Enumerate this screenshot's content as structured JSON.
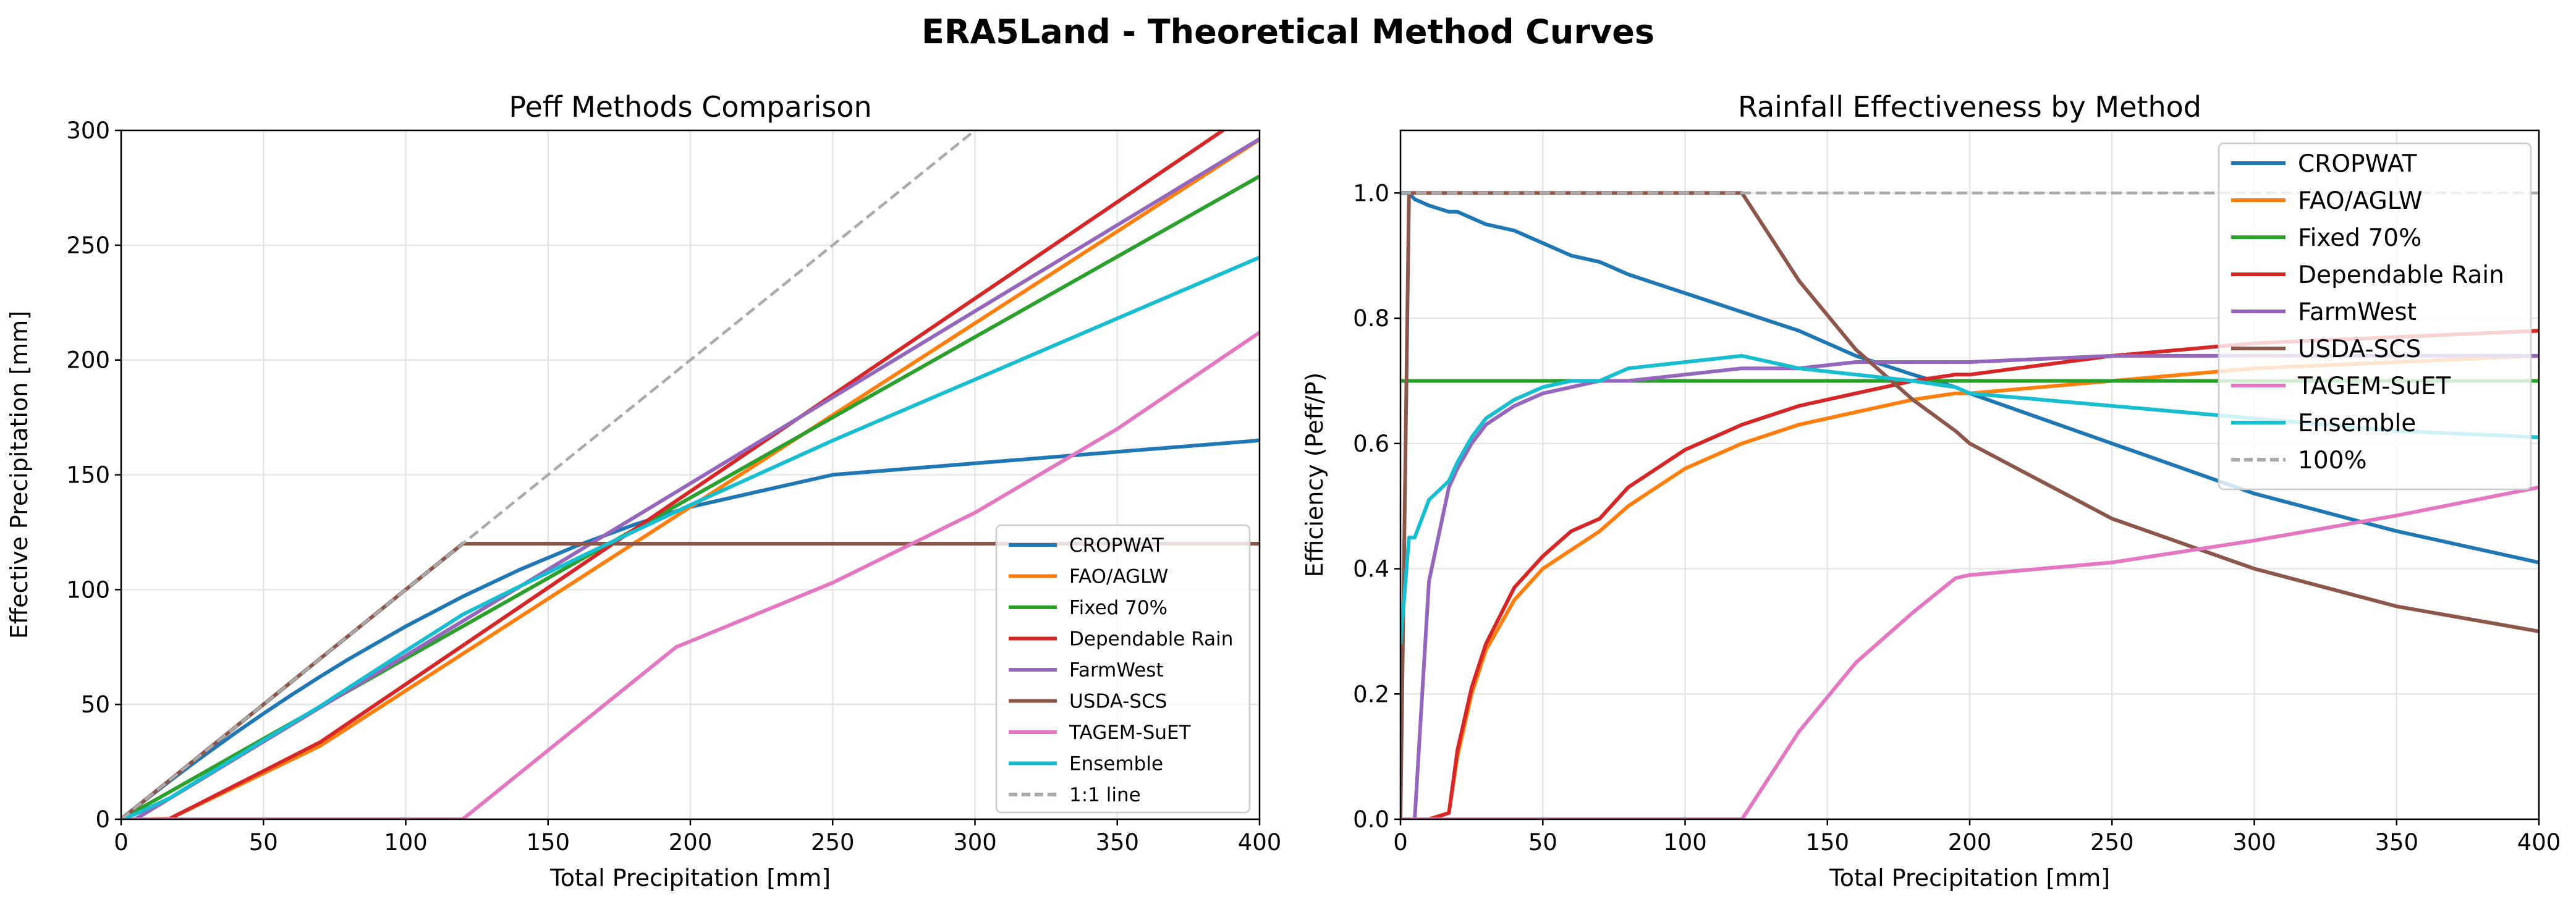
{
  "figure_title": "ERA5Land - Theoretical Method Curves",
  "colors": {
    "CROPWAT": "#1f77b4",
    "FAO/AGLW": "#ff7f0e",
    "Fixed 70%": "#2ca02c",
    "Dependable Rain": "#d62728",
    "FarmWest": "#9467bd",
    "USDA-SCS": "#8c564b",
    "TAGEM-SuET": "#e377c2",
    "Ensemble": "#17becf",
    "reference": "#aaaaaa"
  },
  "chart_data": [
    {
      "type": "line",
      "title": "Peff Methods Comparison",
      "xlabel": "Total Precipitation [mm]",
      "ylabel": "Effective Precipitation [mm]",
      "xlim": [
        0,
        400
      ],
      "ylim": [
        0,
        300
      ],
      "xticks": [
        "0",
        "50",
        "100",
        "150",
        "200",
        "250",
        "300",
        "350",
        "400"
      ],
      "yticks": [
        "0",
        "50",
        "100",
        "150",
        "200",
        "250",
        "300"
      ],
      "grid": true,
      "legend_position": "lower-right",
      "x": [
        0,
        3,
        5,
        10,
        17,
        20,
        25,
        30,
        40,
        50,
        60,
        70,
        80,
        100,
        120,
        140,
        160,
        180,
        195,
        200,
        250,
        300,
        350,
        400
      ],
      "series": [
        {
          "name": "CROPWAT",
          "values": [
            0,
            2.99,
            4.96,
            9.84,
            16.54,
            19.36,
            24,
            28.56,
            37.44,
            46,
            54.24,
            62.16,
            69.76,
            84,
            96.96,
            108.64,
            119.04,
            128.16,
            134.16,
            136,
            150,
            155,
            160,
            165
          ]
        },
        {
          "name": "FAO/AGLW",
          "values": [
            0,
            0,
            0,
            0,
            0.2,
            2,
            5,
            8,
            14,
            20,
            26,
            32,
            40,
            56,
            72,
            88,
            104,
            120,
            132,
            136,
            176,
            216,
            256,
            296
          ]
        },
        {
          "name": "Fixed 70%",
          "values": [
            0,
            2.1,
            3.5,
            7,
            11.9,
            14,
            17.5,
            21,
            28,
            35,
            42,
            49,
            56,
            70,
            84,
            98,
            112,
            126,
            136.5,
            140,
            175,
            210,
            245,
            280
          ]
        },
        {
          "name": "Dependable Rain",
          "values": [
            0,
            0,
            0,
            0,
            0.21,
            2.1,
            5.25,
            8.4,
            14.7,
            21,
            27.3,
            33.6,
            42,
            58.8,
            75.6,
            92.4,
            109.2,
            126,
            138.6,
            142.8,
            184.8,
            226.8,
            268.8,
            310.8
          ]
        },
        {
          "name": "FarmWest",
          "values": [
            0,
            0,
            0,
            3.75,
            9,
            11.25,
            15,
            18.75,
            26.25,
            33.75,
            41.25,
            48.75,
            56.25,
            71.25,
            86.25,
            101.25,
            116.25,
            131.25,
            142.5,
            146.25,
            183.75,
            221.25,
            258.75,
            296.25
          ]
        },
        {
          "name": "USDA-SCS",
          "values": [
            0,
            3,
            5,
            10,
            17,
            20,
            25,
            30,
            40,
            50,
            60,
            70,
            80,
            100,
            120,
            120,
            120,
            120,
            120,
            120,
            120,
            120,
            120,
            120
          ]
        },
        {
          "name": "TAGEM-SuET",
          "values": [
            0,
            0,
            0,
            0,
            0,
            0,
            0,
            0,
            0,
            0,
            0,
            0,
            0,
            0,
            0,
            20,
            40,
            60,
            75,
            77.5,
            103,
            133.5,
            170,
            212
          ]
        },
        {
          "name": "Ensemble",
          "values": [
            0,
            1.35,
            2.24,
            5.1,
            9.14,
            11.45,
            15.29,
            19.12,
            26.73,
            34.29,
            41.8,
            49.25,
            57.34,
            73.34,
            89.13,
            101.38,
            113.42,
            125.24,
            133.96,
            136.84,
            164.93,
            191.51,
            218.09,
            244.68
          ]
        }
      ],
      "reference": {
        "name": "1:1 line",
        "x": [
          0,
          300
        ],
        "values": [
          0,
          300
        ],
        "style": "dashed"
      }
    },
    {
      "type": "line",
      "title": "Rainfall Effectiveness by Method",
      "xlabel": "Total Precipitation [mm]",
      "ylabel": "Efficiency (Peff/P)",
      "xlim": [
        0,
        400
      ],
      "ylim": [
        0,
        1.1
      ],
      "xticks": [
        "0",
        "50",
        "100",
        "150",
        "200",
        "250",
        "300",
        "350",
        "400"
      ],
      "yticks": [
        "0.0",
        "0.2",
        "0.4",
        "0.6",
        "0.8",
        "1.0"
      ],
      "grid": true,
      "legend_position": "upper-right",
      "x": [
        0,
        3,
        5,
        10,
        17,
        20,
        25,
        30,
        40,
        50,
        60,
        70,
        80,
        100,
        120,
        140,
        160,
        180,
        195,
        200,
        250,
        300,
        350,
        400
      ],
      "series": [
        {
          "name": "CROPWAT",
          "values": [
            1.0,
            1.0,
            0.99,
            0.98,
            0.97,
            0.97,
            0.96,
            0.95,
            0.94,
            0.92,
            0.9,
            0.89,
            0.87,
            0.84,
            0.81,
            0.78,
            0.74,
            0.71,
            0.69,
            0.68,
            0.6,
            0.52,
            0.46,
            0.41
          ]
        },
        {
          "name": "FAO/AGLW",
          "values": [
            0,
            0,
            0,
            0,
            0.01,
            0.1,
            0.2,
            0.27,
            0.35,
            0.4,
            0.43,
            0.46,
            0.5,
            0.56,
            0.6,
            0.63,
            0.65,
            0.67,
            0.68,
            0.68,
            0.7,
            0.72,
            0.73,
            0.74
          ]
        },
        {
          "name": "Fixed 70%",
          "values": [
            0.7,
            0.7,
            0.7,
            0.7,
            0.7,
            0.7,
            0.7,
            0.7,
            0.7,
            0.7,
            0.7,
            0.7,
            0.7,
            0.7,
            0.7,
            0.7,
            0.7,
            0.7,
            0.7,
            0.7,
            0.7,
            0.7,
            0.7,
            0.7
          ]
        },
        {
          "name": "Dependable Rain",
          "values": [
            0,
            0,
            0,
            0,
            0.01,
            0.11,
            0.21,
            0.28,
            0.37,
            0.42,
            0.46,
            0.48,
            0.53,
            0.59,
            0.63,
            0.66,
            0.68,
            0.7,
            0.71,
            0.71,
            0.74,
            0.76,
            0.77,
            0.78
          ]
        },
        {
          "name": "FarmWest",
          "values": [
            0,
            0,
            0,
            0.38,
            0.53,
            0.56,
            0.6,
            0.63,
            0.66,
            0.68,
            0.69,
            0.7,
            0.7,
            0.71,
            0.72,
            0.72,
            0.73,
            0.73,
            0.73,
            0.73,
            0.74,
            0.74,
            0.74,
            0.74
          ]
        },
        {
          "name": "USDA-SCS",
          "values": [
            0,
            1.0,
            1.0,
            1.0,
            1.0,
            1.0,
            1.0,
            1.0,
            1.0,
            1.0,
            1.0,
            1.0,
            1.0,
            1.0,
            1.0,
            0.86,
            0.75,
            0.67,
            0.62,
            0.6,
            0.48,
            0.4,
            0.34,
            0.3
          ]
        },
        {
          "name": "TAGEM-SuET",
          "values": [
            0,
            0,
            0,
            0,
            0,
            0,
            0,
            0,
            0,
            0,
            0,
            0,
            0,
            0,
            0,
            0.14,
            0.25,
            0.33,
            0.385,
            0.39,
            0.41,
            0.445,
            0.485,
            0.53
          ]
        },
        {
          "name": "Ensemble",
          "values": [
            0.28,
            0.45,
            0.45,
            0.51,
            0.54,
            0.57,
            0.61,
            0.64,
            0.67,
            0.69,
            0.7,
            0.7,
            0.72,
            0.73,
            0.74,
            0.72,
            0.71,
            0.7,
            0.69,
            0.68,
            0.66,
            0.64,
            0.62,
            0.61
          ]
        }
      ],
      "reference": {
        "name": "100%",
        "x": [
          0,
          400
        ],
        "values": [
          1.0,
          1.0
        ],
        "style": "dashed"
      }
    }
  ]
}
